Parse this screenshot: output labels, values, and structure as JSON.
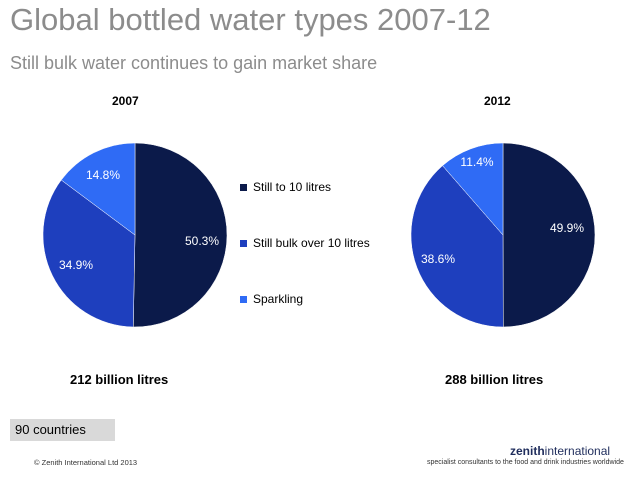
{
  "header": {
    "title": "Global bottled water types 2007-12",
    "subtitle": "Still bulk water continues to gain market share"
  },
  "chart_data": [
    {
      "type": "pie",
      "title": "2007",
      "total_label": "212 billion litres",
      "categories": [
        "Still to 10 litres",
        "Still bulk over 10 litres",
        "Sparkling"
      ],
      "values": [
        50.3,
        34.9,
        14.8
      ],
      "labels": [
        "50.3%",
        "34.9%",
        "14.8%"
      ],
      "colors": [
        "#0b1a4a",
        "#1e3fbe",
        "#2f6bf5"
      ]
    },
    {
      "type": "pie",
      "title": "2012",
      "total_label": "288 billion litres",
      "categories": [
        "Still to 10 litres",
        "Still bulk over 10 litres",
        "Sparkling"
      ],
      "values": [
        49.9,
        38.6,
        11.4
      ],
      "labels": [
        "49.9%",
        "38.6%",
        "11.4%"
      ],
      "colors": [
        "#0b1a4a",
        "#1e3fbe",
        "#2f6bf5"
      ]
    }
  ],
  "legend": {
    "position": "center",
    "items": [
      {
        "label": "Still to 10 litres",
        "color": "#0b1a4a"
      },
      {
        "label": "Still bulk over 10 litres",
        "color": "#1e3fbe"
      },
      {
        "label": "Sparkling",
        "color": "#2f6bf5"
      }
    ]
  },
  "footer": {
    "countries": "90 countries",
    "copyright": "© Zenith International Ltd 2013",
    "brand_bold": "zenith",
    "brand_rest": "international",
    "tagline": "specialist consultants to the food and drink industries worldwide"
  }
}
